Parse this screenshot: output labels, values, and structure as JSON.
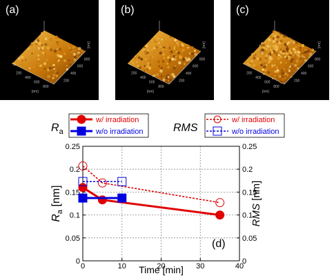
{
  "panels": {
    "a": {
      "letter": "(a)",
      "axis_unit": "[nm]",
      "ticks_x": [
        "200",
        "400",
        "600",
        "800"
      ],
      "ticks_y": [
        "200",
        "400",
        "600",
        "800"
      ]
    },
    "b": {
      "letter": "(b)",
      "axis_unit": "[nm]",
      "ticks_x": [
        "200",
        "400",
        "600",
        "800"
      ],
      "ticks_y": [
        "200",
        "400",
        "600",
        "800"
      ]
    },
    "c": {
      "letter": "(c)",
      "axis_unit": "[nm]",
      "ticks_x": [
        "200",
        "400",
        "600",
        "800"
      ],
      "ticks_y": [
        "200",
        "400",
        "600",
        "800"
      ]
    }
  },
  "colors": {
    "red": "#e00000",
    "blue": "#0000e0",
    "grid": "#888888",
    "afm_dark": "#7a3a00",
    "afm_mid": "#c8780a",
    "afm_light": "#f4c04a"
  },
  "chart_data": {
    "type": "line",
    "panel_label": "(d)",
    "xlabel": "Time [min]",
    "ylabel_left": {
      "main": "R",
      "sub": "a",
      "unit": " [nm]"
    },
    "ylabel_right": {
      "main": "RMS",
      "unit": " [nm]"
    },
    "left_legend_title": {
      "main": "R",
      "sub": "a"
    },
    "right_legend_title": "RMS",
    "xlim": [
      0,
      40
    ],
    "ylim": [
      0,
      0.25
    ],
    "x_ticks": [
      "0",
      "10",
      "20",
      "30",
      "40"
    ],
    "y_ticks": [
      "0",
      "0.05",
      "0.1",
      "0.15",
      "0.2",
      "0.25"
    ],
    "grid": true,
    "series": [
      {
        "name": "w/ irradiation",
        "axis": "Ra",
        "color": "#e00000",
        "marker": "circle",
        "filled": true,
        "dashed": false,
        "x": [
          0,
          5,
          35
        ],
        "y": [
          0.16,
          0.133,
          0.1
        ]
      },
      {
        "name": "w/o irradiation",
        "axis": "Ra",
        "color": "#0000e0",
        "marker": "square",
        "filled": true,
        "dashed": false,
        "x": [
          0,
          10
        ],
        "y": [
          0.137,
          0.137
        ]
      },
      {
        "name": "w/ irradiation",
        "axis": "RMS",
        "color": "#e00000",
        "marker": "circle",
        "filled": false,
        "dashed": true,
        "x": [
          0,
          5,
          35
        ],
        "y": [
          0.207,
          0.17,
          0.127
        ]
      },
      {
        "name": "w/o irradiation",
        "axis": "RMS",
        "color": "#0000e0",
        "marker": "square",
        "filled": false,
        "dashed": true,
        "x": [
          0,
          10
        ],
        "y": [
          0.173,
          0.173
        ]
      }
    ]
  }
}
